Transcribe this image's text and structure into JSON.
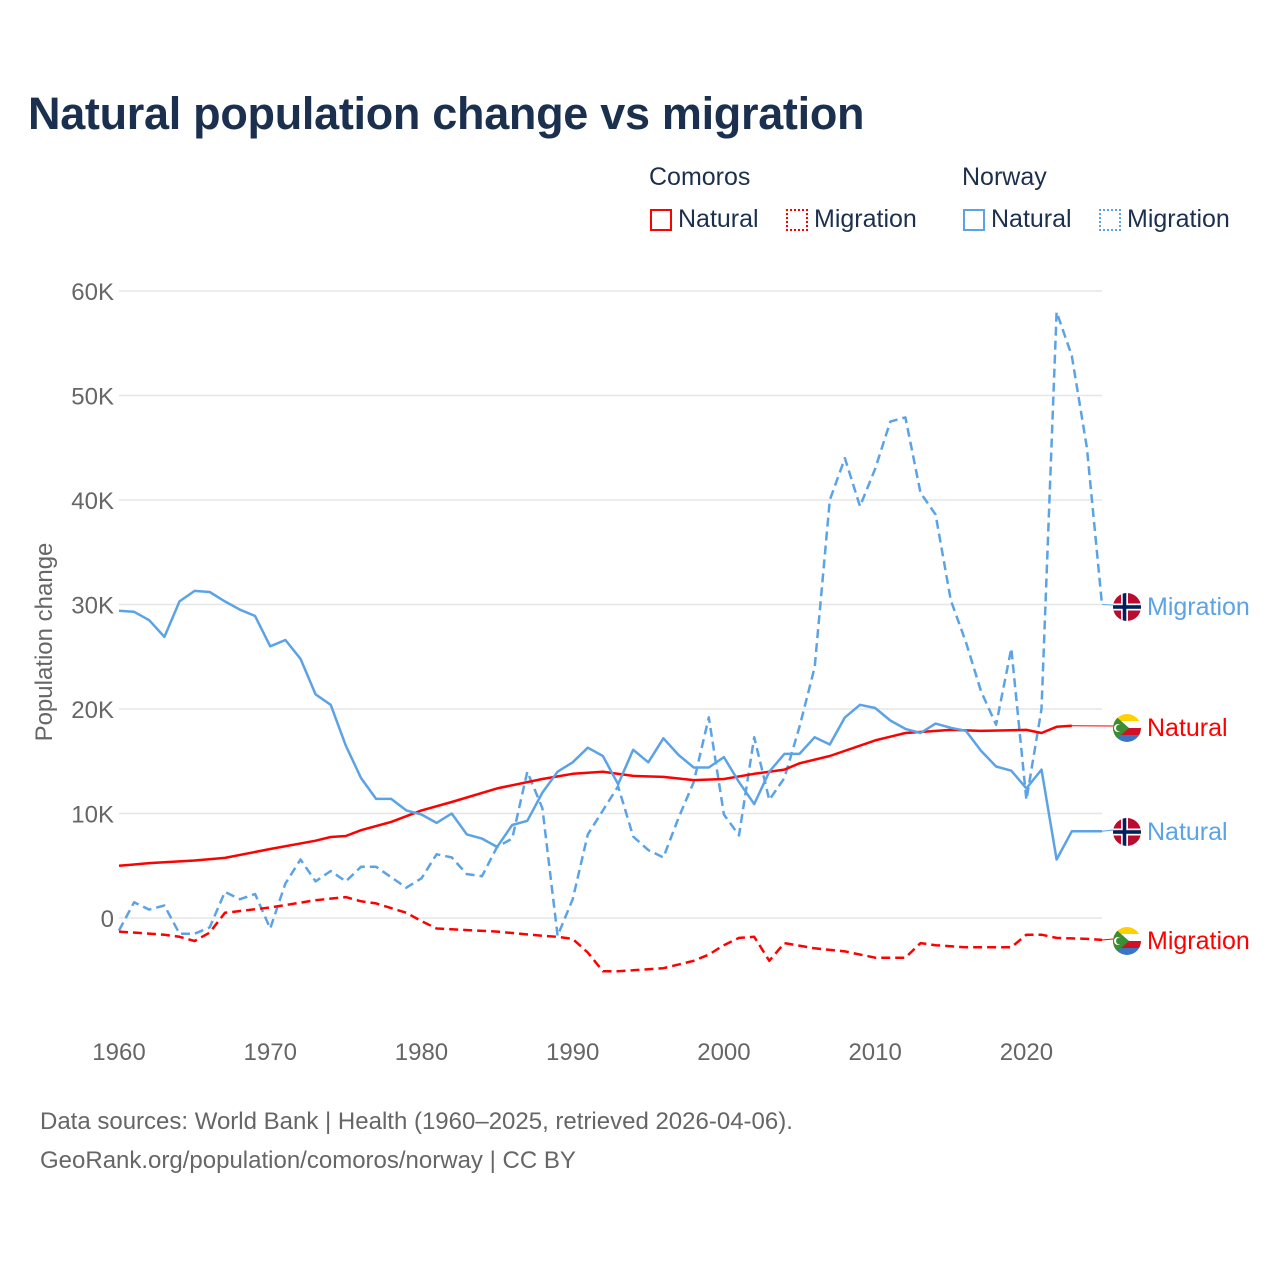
{
  "title": "Natural population change vs migration",
  "legend": {
    "groups": [
      {
        "name": "Comoros",
        "items": [
          {
            "label": "Natural",
            "style": "solid"
          },
          {
            "label": "Migration",
            "style": "dotted"
          }
        ],
        "color": "#ff0000"
      },
      {
        "name": "Norway",
        "items": [
          {
            "label": "Natural",
            "style": "solid"
          },
          {
            "label": "Migration",
            "style": "dotted"
          }
        ],
        "color": "#5ba3e6"
      }
    ]
  },
  "footer": {
    "source": "Data sources: World Bank | Health (1960–2025, retrieved 2026-04-06).",
    "link": "GeoRank.org/population/comoros/norway | CC BY"
  },
  "chart_data": {
    "type": "line",
    "title": "Natural population change vs migration",
    "xlabel": "",
    "ylabel": "Population change",
    "xlim": [
      1960,
      2025
    ],
    "ylim": [
      -10000,
      60000
    ],
    "x_ticks": [
      1960,
      1970,
      1980,
      1990,
      2000,
      2010,
      2020
    ],
    "y_ticks": [
      0,
      10000,
      20000,
      30000,
      40000,
      50000,
      60000
    ],
    "y_tick_labels": [
      "0",
      "10K",
      "20K",
      "30K",
      "40K",
      "50K",
      "60K"
    ],
    "grid": true,
    "legend_position": "top-right",
    "series": [
      {
        "name": "Norway Migration",
        "country": "Norway",
        "end_label": "Migration",
        "color": "#5ba3e6",
        "dash": true,
        "end_year": 2025,
        "points": [
          [
            1960,
            -1200
          ],
          [
            1961,
            1500
          ],
          [
            1962,
            800
          ],
          [
            1963,
            1200
          ],
          [
            1964,
            -1500
          ],
          [
            1965,
            -1500
          ],
          [
            1966,
            -900
          ],
          [
            1967,
            2500
          ],
          [
            1968,
            1800
          ],
          [
            1969,
            2300
          ],
          [
            1970,
            -1000
          ],
          [
            1971,
            3300
          ],
          [
            1972,
            5600
          ],
          [
            1973,
            3500
          ],
          [
            1974,
            4500
          ],
          [
            1975,
            3500
          ],
          [
            1976,
            4900
          ],
          [
            1977,
            4900
          ],
          [
            1978,
            3900
          ],
          [
            1979,
            2900
          ],
          [
            1980,
            3800
          ],
          [
            1981,
            6100
          ],
          [
            1982,
            5800
          ],
          [
            1983,
            4200
          ],
          [
            1984,
            4000
          ],
          [
            1985,
            6800
          ],
          [
            1986,
            7600
          ],
          [
            1987,
            14000
          ],
          [
            1988,
            10500
          ],
          [
            1989,
            -1700
          ],
          [
            1990,
            1800
          ],
          [
            1991,
            8000
          ],
          [
            1992,
            10300
          ],
          [
            1993,
            12600
          ],
          [
            1994,
            7800
          ],
          [
            1995,
            6500
          ],
          [
            1996,
            5800
          ],
          [
            1997,
            9600
          ],
          [
            1998,
            13000
          ],
          [
            1999,
            19200
          ],
          [
            2000,
            9900
          ],
          [
            2001,
            7900
          ],
          [
            2002,
            17300
          ],
          [
            2003,
            11300
          ],
          [
            2004,
            13400
          ],
          [
            2005,
            18300
          ],
          [
            2006,
            24000
          ],
          [
            2007,
            40000
          ],
          [
            2008,
            44000
          ],
          [
            2009,
            39400
          ],
          [
            2010,
            43000
          ],
          [
            2011,
            47500
          ],
          [
            2012,
            47900
          ],
          [
            2013,
            40700
          ],
          [
            2014,
            38600
          ],
          [
            2015,
            30400
          ],
          [
            2016,
            26400
          ],
          [
            2017,
            21700
          ],
          [
            2018,
            18500
          ],
          [
            2019,
            25800
          ],
          [
            2020,
            11300
          ],
          [
            2021,
            20000
          ],
          [
            2022,
            58000
          ],
          [
            2023,
            53800
          ],
          [
            2024,
            45000
          ],
          [
            2025,
            30000
          ]
        ]
      },
      {
        "name": "Comoros Natural",
        "country": "Comoros",
        "end_label": "Natural",
        "color": "#ff0000",
        "dash": false,
        "end_year": 2023,
        "points": [
          [
            1960,
            5000
          ],
          [
            1962,
            5250
          ],
          [
            1965,
            5500
          ],
          [
            1967,
            5750
          ],
          [
            1970,
            6600
          ],
          [
            1973,
            7400
          ],
          [
            1974,
            7750
          ],
          [
            1975,
            7850
          ],
          [
            1976,
            8400
          ],
          [
            1978,
            9200
          ],
          [
            1980,
            10300
          ],
          [
            1982,
            11100
          ],
          [
            1985,
            12400
          ],
          [
            1988,
            13300
          ],
          [
            1990,
            13800
          ],
          [
            1992,
            14000
          ],
          [
            1994,
            13600
          ],
          [
            1996,
            13500
          ],
          [
            1998,
            13200
          ],
          [
            2000,
            13300
          ],
          [
            2002,
            13800
          ],
          [
            2004,
            14200
          ],
          [
            2005,
            14800
          ],
          [
            2007,
            15500
          ],
          [
            2010,
            17000
          ],
          [
            2012,
            17700
          ],
          [
            2015,
            18000
          ],
          [
            2017,
            17900
          ],
          [
            2020,
            18000
          ],
          [
            2021,
            17700
          ],
          [
            2022,
            18300
          ],
          [
            2023,
            18400
          ]
        ]
      },
      {
        "name": "Norway Natural",
        "country": "Norway",
        "end_label": "Natural",
        "color": "#5ba3e6",
        "dash": false,
        "end_year": 2025,
        "points": [
          [
            1960,
            29400
          ],
          [
            1961,
            29300
          ],
          [
            1962,
            28500
          ],
          [
            1963,
            26900
          ],
          [
            1964,
            30300
          ],
          [
            1965,
            31300
          ],
          [
            1966,
            31200
          ],
          [
            1967,
            30300
          ],
          [
            1968,
            29500
          ],
          [
            1969,
            28900
          ],
          [
            1970,
            26000
          ],
          [
            1971,
            26600
          ],
          [
            1972,
            24800
          ],
          [
            1973,
            21400
          ],
          [
            1974,
            20400
          ],
          [
            1975,
            16500
          ],
          [
            1976,
            13400
          ],
          [
            1977,
            11400
          ],
          [
            1978,
            11400
          ],
          [
            1979,
            10300
          ],
          [
            1980,
            9900
          ],
          [
            1981,
            9100
          ],
          [
            1982,
            10000
          ],
          [
            1983,
            8000
          ],
          [
            1984,
            7600
          ],
          [
            1985,
            6800
          ],
          [
            1986,
            8900
          ],
          [
            1987,
            9300
          ],
          [
            1988,
            12000
          ],
          [
            1989,
            14000
          ],
          [
            1990,
            14900
          ],
          [
            1991,
            16300
          ],
          [
            1992,
            15500
          ],
          [
            1993,
            12800
          ],
          [
            1994,
            16100
          ],
          [
            1995,
            14900
          ],
          [
            1996,
            17200
          ],
          [
            1997,
            15600
          ],
          [
            1998,
            14400
          ],
          [
            1999,
            14400
          ],
          [
            2000,
            15400
          ],
          [
            2001,
            13000
          ],
          [
            2002,
            10900
          ],
          [
            2003,
            14000
          ],
          [
            2004,
            15700
          ],
          [
            2005,
            15700
          ],
          [
            2006,
            17300
          ],
          [
            2007,
            16600
          ],
          [
            2008,
            19200
          ],
          [
            2009,
            20400
          ],
          [
            2010,
            20100
          ],
          [
            2011,
            18900
          ],
          [
            2012,
            18100
          ],
          [
            2013,
            17700
          ],
          [
            2014,
            18600
          ],
          [
            2015,
            18200
          ],
          [
            2016,
            17900
          ],
          [
            2017,
            16000
          ],
          [
            2018,
            14500
          ],
          [
            2019,
            14100
          ],
          [
            2020,
            12400
          ],
          [
            2021,
            14200
          ],
          [
            2022,
            5600
          ],
          [
            2023,
            8300
          ],
          [
            2024,
            8300
          ],
          [
            2025,
            8300
          ]
        ]
      },
      {
        "name": "Comoros Migration",
        "country": "Comoros",
        "end_label": "Migration",
        "color": "#ff0000",
        "dash": true,
        "end_year": 2025,
        "points": [
          [
            1960,
            -1300
          ],
          [
            1963,
            -1600
          ],
          [
            1964,
            -1800
          ],
          [
            1965,
            -2200
          ],
          [
            1966,
            -1400
          ],
          [
            1967,
            500
          ],
          [
            1970,
            1000
          ],
          [
            1973,
            1700
          ],
          [
            1975,
            2000
          ],
          [
            1976,
            1600
          ],
          [
            1977,
            1400
          ],
          [
            1979,
            500
          ],
          [
            1980,
            -300
          ],
          [
            1981,
            -1000
          ],
          [
            1985,
            -1300
          ],
          [
            1988,
            -1700
          ],
          [
            1989,
            -1800
          ],
          [
            1990,
            -2000
          ],
          [
            1991,
            -3300
          ],
          [
            1992,
            -5100
          ],
          [
            1993,
            -5100
          ],
          [
            1995,
            -4900
          ],
          [
            1996,
            -4800
          ],
          [
            1998,
            -4100
          ],
          [
            1999,
            -3500
          ],
          [
            2000,
            -2600
          ],
          [
            2001,
            -1900
          ],
          [
            2002,
            -1800
          ],
          [
            2003,
            -4100
          ],
          [
            2004,
            -2400
          ],
          [
            2006,
            -2900
          ],
          [
            2008,
            -3200
          ],
          [
            2010,
            -3800
          ],
          [
            2012,
            -3800
          ],
          [
            2013,
            -2400
          ],
          [
            2014,
            -2600
          ],
          [
            2016,
            -2800
          ],
          [
            2019,
            -2800
          ],
          [
            2020,
            -1600
          ],
          [
            2021,
            -1600
          ],
          [
            2022,
            -1900
          ],
          [
            2024,
            -2000
          ],
          [
            2025,
            -2100
          ]
        ]
      }
    ]
  }
}
